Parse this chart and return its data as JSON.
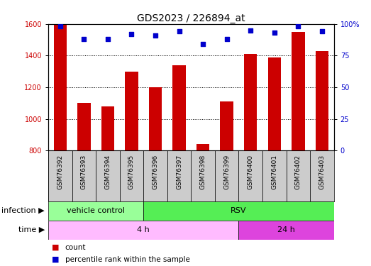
{
  "title": "GDS2023 / 226894_at",
  "samples": [
    "GSM76392",
    "GSM76393",
    "GSM76394",
    "GSM76395",
    "GSM76396",
    "GSM76397",
    "GSM76398",
    "GSM76399",
    "GSM76400",
    "GSM76401",
    "GSM76402",
    "GSM76403"
  ],
  "counts": [
    1600,
    1100,
    1080,
    1300,
    1200,
    1340,
    840,
    1110,
    1410,
    1390,
    1550,
    1430
  ],
  "percentiles": [
    98,
    88,
    88,
    92,
    91,
    94,
    84,
    88,
    95,
    93,
    98,
    94
  ],
  "ylim_left": [
    800,
    1600
  ],
  "ylim_right": [
    0,
    100
  ],
  "yticks_left": [
    800,
    1000,
    1200,
    1400,
    1600
  ],
  "yticks_right": [
    0,
    25,
    50,
    75,
    100
  ],
  "bar_color": "#cc0000",
  "dot_color": "#0000cc",
  "plot_bg": "#ffffff",
  "infection_groups": [
    {
      "label": "vehicle control",
      "start": 0,
      "end": 4,
      "color": "#99ff99"
    },
    {
      "label": "RSV",
      "start": 4,
      "end": 12,
      "color": "#55ee55"
    }
  ],
  "time_groups": [
    {
      "label": "4 h",
      "start": 0,
      "end": 8,
      "color": "#ffbbff"
    },
    {
      "label": "24 h",
      "start": 8,
      "end": 12,
      "color": "#dd44dd"
    }
  ],
  "legend_items": [
    {
      "label": "count",
      "color": "#cc0000"
    },
    {
      "label": "percentile rank within the sample",
      "color": "#0000cc"
    }
  ],
  "sample_bg": "#cccccc",
  "border_color": "#000000",
  "row_label_infection": "infection",
  "row_label_time": "time",
  "title_fontsize": 10,
  "tick_fontsize": 7,
  "sample_fontsize": 6.5,
  "annotation_fontsize": 8,
  "legend_fontsize": 7.5,
  "bar_width": 0.55
}
